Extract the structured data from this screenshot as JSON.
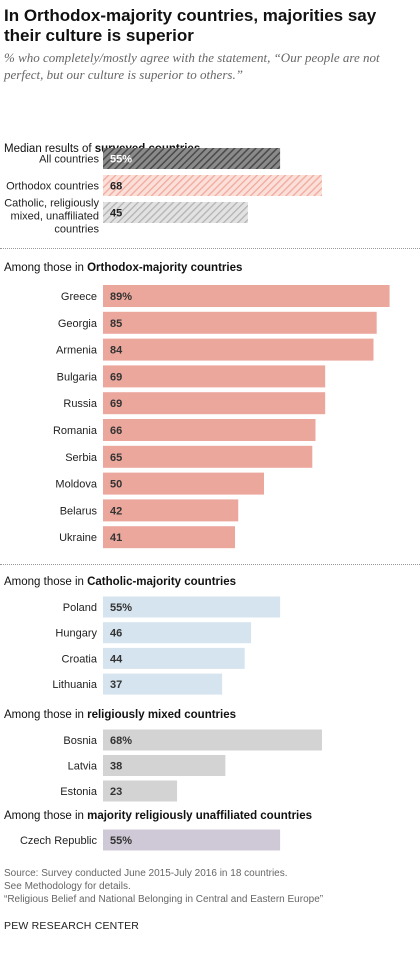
{
  "title": "In Orthodox-majority countries, majorities say their culture is superior",
  "subtitle": "% who completely/mostly agree with the statement, “Our people are not perfect, but our culture is superior to others.”",
  "colors": {
    "orthodox": "#eba79c",
    "catholic": "#d6e4ef",
    "mixed": "#d3d3d3",
    "unaffiliated": "#cfc8d6",
    "median_all": "#5a5a5a",
    "median_orthodox": "#f3b3a8",
    "median_other": "#9c9c9c"
  },
  "sections": {
    "median": {
      "prefix": "Median results of ",
      "bold": "surveyed countries",
      "suffix": ""
    },
    "orthodox": {
      "prefix": "Among those in ",
      "bold": "Orthodox-majority countries",
      "suffix": ""
    },
    "catholic": {
      "prefix": "Among those in ",
      "bold": "Catholic-majority countries",
      "suffix": ""
    },
    "mixed": {
      "prefix": "Among those in ",
      "bold": "religiously mixed countries",
      "suffix": ""
    },
    "unaffiliated": {
      "prefix": "Among those in ",
      "bold": "majority religiously unaffiliated countries",
      "suffix": ""
    }
  },
  "chart_data": [
    {
      "type": "bar",
      "group": "median",
      "categories": [
        [
          "All countries"
        ],
        [
          "Orthodox countries"
        ],
        [
          "Catholic, religiously",
          "mixed, unaffiliated",
          "countries"
        ]
      ],
      "values": [
        55,
        68,
        45
      ],
      "labels": [
        "55%",
        "68",
        "45"
      ],
      "hatched": true,
      "xlim": [
        0,
        100
      ]
    },
    {
      "type": "bar",
      "group": "orthodox",
      "categories": [
        "Greece",
        "Georgia",
        "Armenia",
        "Bulgaria",
        "Russia",
        "Romania",
        "Serbia",
        "Moldova",
        "Belarus",
        "Ukraine"
      ],
      "values": [
        89,
        85,
        84,
        69,
        69,
        66,
        65,
        50,
        42,
        41
      ],
      "labels": [
        "89%",
        "85",
        "84",
        "69",
        "69",
        "66",
        "65",
        "50",
        "42",
        "41"
      ],
      "xlim": [
        0,
        100
      ]
    },
    {
      "type": "bar",
      "group": "catholic",
      "categories": [
        "Poland",
        "Hungary",
        "Croatia",
        "Lithuania"
      ],
      "values": [
        55,
        46,
        44,
        37
      ],
      "labels": [
        "55%",
        "46",
        "44",
        "37"
      ],
      "xlim": [
        0,
        100
      ]
    },
    {
      "type": "bar",
      "group": "mixed",
      "categories": [
        "Bosnia",
        "Latvia",
        "Estonia"
      ],
      "values": [
        68,
        38,
        23
      ],
      "labels": [
        "68%",
        "38",
        "23"
      ],
      "xlim": [
        0,
        100
      ]
    },
    {
      "type": "bar",
      "group": "unaffiliated",
      "categories": [
        "Czech Republic"
      ],
      "values": [
        55
      ],
      "labels": [
        "55%"
      ],
      "xlim": [
        0,
        100
      ]
    }
  ],
  "notes": [
    "Source: Survey conducted June 2015-July 2016 in 18 countries.",
    "See Methodology for details.",
    "“Religious Belief and National Belonging in Central and Eastern Europe”"
  ],
  "brand": "PEW RESEARCH CENTER"
}
